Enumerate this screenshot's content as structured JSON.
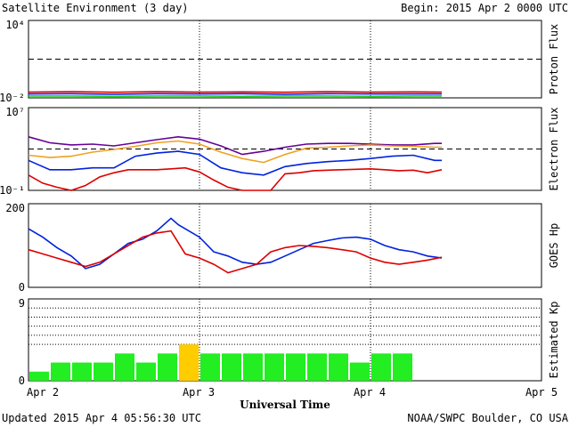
{
  "header": {
    "title": "Satellite Environment (3 day)",
    "begin": "Begin:  2015 Apr 2 0000 UTC"
  },
  "footer": {
    "updated": "Updated 2015 Apr  4 05:56:30 UTC",
    "credit": "NOAA/SWPC Boulder, CO USA"
  },
  "x_axis": {
    "label": "Universal Time",
    "ticks": [
      "Apr 2",
      "Apr 3",
      "Apr 4",
      "Apr 5"
    ],
    "range_hours": [
      0,
      72
    ]
  },
  "colors": {
    "red": "#dd0000",
    "blue": "#0022dd",
    "green": "#22cc22",
    "orange": "#f0a020",
    "purple": "#660099",
    "kp_normal": "#22ee22",
    "kp_active": "#ffcc00"
  },
  "chart_data": [
    {
      "type": "line",
      "title": "",
      "ylabel": "Proton Flux",
      "y_scale": "log",
      "ylim": [
        0.01,
        10000
      ],
      "tick_labels": [
        "10⁴",
        "10⁻²"
      ],
      "threshold": 10,
      "series": [
        {
          "color": "red",
          "x": [
            0,
            6,
            12,
            18,
            24,
            30,
            36,
            42,
            48,
            54,
            58
          ],
          "y": [
            0.028,
            0.03,
            0.027,
            0.03,
            0.028,
            0.029,
            0.027,
            0.03,
            0.028,
            0.029,
            0.028
          ]
        },
        {
          "color": "blue",
          "x": [
            0,
            6,
            12,
            18,
            24,
            30,
            36,
            42,
            48,
            54,
            58
          ],
          "y": [
            0.02,
            0.021,
            0.019,
            0.021,
            0.02,
            0.021,
            0.019,
            0.021,
            0.02,
            0.02,
            0.02
          ]
        },
        {
          "color": "green",
          "x": [
            0,
            6,
            12,
            18,
            24,
            30,
            36,
            42,
            48,
            54,
            58
          ],
          "y": [
            0.014,
            0.014,
            0.013,
            0.014,
            0.014,
            0.013,
            0.014,
            0.014,
            0.013,
            0.014,
            0.014
          ]
        }
      ]
    },
    {
      "type": "line",
      "title": "",
      "ylabel": "Electron Flux",
      "y_scale": "log",
      "ylim": [
        0.1,
        10000000
      ],
      "tick_labels": [
        "10⁷",
        "10⁻¹"
      ],
      "threshold": 1000,
      "series": [
        {
          "color": "purple",
          "x": [
            0,
            3,
            6,
            9,
            12,
            15,
            18,
            21,
            24,
            27,
            30,
            33,
            36,
            39,
            42,
            45,
            48,
            51,
            54,
            57,
            58
          ],
          "y": [
            15000,
            4000,
            2500,
            3000,
            2000,
            4000,
            8000,
            15000,
            9000,
            2000,
            300,
            600,
            1500,
            3000,
            3500,
            3500,
            3000,
            2500,
            2500,
            3500,
            3500
          ]
        },
        {
          "color": "orange",
          "x": [
            0,
            3,
            6,
            9,
            12,
            15,
            18,
            21,
            24,
            27,
            30,
            33,
            36,
            39,
            42,
            45,
            48,
            51,
            54,
            57,
            58
          ],
          "y": [
            250,
            150,
            200,
            500,
            900,
            1800,
            4000,
            6000,
            3000,
            500,
            120,
            50,
            300,
            1200,
            1500,
            2000,
            2500,
            2000,
            1800,
            1500,
            1500
          ]
        },
        {
          "color": "blue",
          "x": [
            0,
            3,
            6,
            9,
            12,
            15,
            18,
            21,
            24,
            27,
            30,
            33,
            36,
            39,
            42,
            45,
            48,
            51,
            54,
            57,
            58
          ],
          "y": [
            80,
            10,
            10,
            15,
            15,
            200,
            400,
            600,
            300,
            15,
            5,
            3,
            20,
            40,
            60,
            80,
            120,
            200,
            250,
            80,
            80
          ]
        },
        {
          "color": "red",
          "x": [
            0,
            2,
            4,
            6,
            8,
            10,
            12,
            14,
            16,
            18,
            20,
            22,
            24,
            26,
            28,
            30,
            32,
            34,
            36,
            38,
            40,
            42,
            44,
            46,
            48,
            50,
            52,
            54,
            56,
            58
          ],
          "y": [
            3,
            0.5,
            0.2,
            0.1,
            0.3,
            2,
            5,
            10,
            10,
            10,
            12,
            15,
            6,
            1,
            0.2,
            0.1,
            0.1,
            0.1,
            4,
            5,
            8,
            9,
            10,
            11,
            12,
            10,
            8,
            9,
            5,
            10
          ]
        }
      ]
    },
    {
      "type": "line",
      "title": "",
      "ylabel": "GOES Hp",
      "y_scale": "linear",
      "ylim": [
        0,
        200
      ],
      "tick_labels": [
        "200",
        "0"
      ],
      "series": [
        {
          "color": "blue",
          "x": [
            0,
            2,
            4,
            6,
            8,
            10,
            12,
            14,
            16,
            18,
            20,
            21,
            22,
            24,
            26,
            28,
            30,
            32,
            34,
            36,
            38,
            40,
            42,
            44,
            46,
            48,
            50,
            52,
            54,
            56,
            58
          ],
          "y": [
            140,
            120,
            95,
            75,
            45,
            55,
            80,
            105,
            115,
            135,
            165,
            150,
            140,
            120,
            85,
            75,
            60,
            55,
            60,
            75,
            90,
            105,
            112,
            118,
            120,
            115,
            100,
            90,
            85,
            75,
            70
          ]
        },
        {
          "color": "red",
          "x": [
            0,
            2,
            4,
            6,
            8,
            10,
            12,
            14,
            16,
            18,
            20,
            22,
            24,
            26,
            28,
            30,
            32,
            34,
            36,
            38,
            40,
            42,
            44,
            46,
            48,
            50,
            52,
            54,
            56,
            58
          ],
          "y": [
            90,
            80,
            70,
            60,
            50,
            60,
            80,
            100,
            120,
            130,
            135,
            80,
            70,
            55,
            35,
            45,
            55,
            85,
            95,
            100,
            98,
            95,
            90,
            85,
            70,
            60,
            55,
            60,
            65,
            72
          ]
        }
      ]
    },
    {
      "type": "bar",
      "title": "",
      "ylabel": "Estimated Kp",
      "ylim": [
        0,
        9
      ],
      "tick_labels": [
        "9",
        "0"
      ],
      "gridlines": [
        4,
        5,
        6,
        7,
        8,
        9
      ],
      "bar_hours": 3,
      "values": [
        1,
        2,
        2,
        2,
        3,
        2,
        3,
        4,
        3,
        3,
        3,
        3,
        3,
        3,
        3,
        2,
        3,
        3
      ],
      "highlight_at_or_above": 4
    }
  ]
}
